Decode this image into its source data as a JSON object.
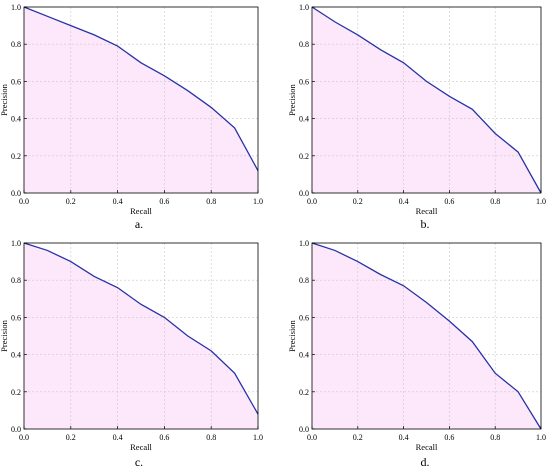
{
  "colors": {
    "line": "#2632a8",
    "fill": "#fde8fb"
  },
  "chart_data": [
    {
      "type": "area",
      "caption": "a.",
      "xlabel": "Recall",
      "ylabel": "Precision",
      "xlim": [
        0,
        1
      ],
      "ylim": [
        0,
        1
      ],
      "xticks": [
        "0.0",
        "0.2",
        "0.4",
        "0.6",
        "0.8",
        "1.0"
      ],
      "yticks": [
        "0.0",
        "0.2",
        "0.4",
        "0.6",
        "0.8",
        "1.0"
      ],
      "grid": true,
      "x": [
        0.0,
        0.1,
        0.2,
        0.3,
        0.4,
        0.5,
        0.6,
        0.7,
        0.8,
        0.9,
        1.0
      ],
      "y": [
        1.0,
        0.95,
        0.9,
        0.85,
        0.79,
        0.7,
        0.63,
        0.55,
        0.46,
        0.35,
        0.12
      ]
    },
    {
      "type": "area",
      "caption": "b.",
      "xlabel": "Recall",
      "ylabel": "Precision",
      "xlim": [
        0,
        1
      ],
      "ylim": [
        0,
        1
      ],
      "xticks": [
        "0.0",
        "0.2",
        "0.4",
        "0.6",
        "0.8",
        "1.0"
      ],
      "yticks": [
        "0.0",
        "0.2",
        "0.4",
        "0.6",
        "0.8",
        "1.0"
      ],
      "grid": true,
      "x": [
        0.0,
        0.1,
        0.2,
        0.3,
        0.4,
        0.5,
        0.6,
        0.7,
        0.8,
        0.9,
        1.0
      ],
      "y": [
        1.0,
        0.92,
        0.85,
        0.77,
        0.7,
        0.6,
        0.52,
        0.45,
        0.32,
        0.22,
        0.0
      ]
    },
    {
      "type": "area",
      "caption": "c.",
      "xlabel": "Recall",
      "ylabel": "Precision",
      "xlim": [
        0,
        1
      ],
      "ylim": [
        0,
        1
      ],
      "xticks": [
        "0.0",
        "0.2",
        "0.4",
        "0.6",
        "0.8",
        "1.0"
      ],
      "yticks": [
        "0.0",
        "0.2",
        "0.4",
        "0.6",
        "0.8",
        "1.0"
      ],
      "grid": true,
      "x": [
        0.0,
        0.1,
        0.2,
        0.3,
        0.4,
        0.5,
        0.6,
        0.7,
        0.8,
        0.9,
        1.0
      ],
      "y": [
        1.0,
        0.96,
        0.9,
        0.82,
        0.76,
        0.67,
        0.6,
        0.5,
        0.42,
        0.3,
        0.08
      ]
    },
    {
      "type": "area",
      "caption": "d.",
      "xlabel": "Recall",
      "ylabel": "Precision",
      "xlim": [
        0,
        1
      ],
      "ylim": [
        0,
        1
      ],
      "xticks": [
        "0.0",
        "0.2",
        "0.4",
        "0.6",
        "0.8",
        "1.0"
      ],
      "yticks": [
        "0.0",
        "0.2",
        "0.4",
        "0.6",
        "0.8",
        "1.0"
      ],
      "grid": true,
      "x": [
        0.0,
        0.1,
        0.2,
        0.3,
        0.4,
        0.5,
        0.6,
        0.7,
        0.8,
        0.9,
        1.0
      ],
      "y": [
        1.0,
        0.96,
        0.9,
        0.83,
        0.77,
        0.68,
        0.58,
        0.47,
        0.3,
        0.2,
        0.0
      ]
    }
  ]
}
